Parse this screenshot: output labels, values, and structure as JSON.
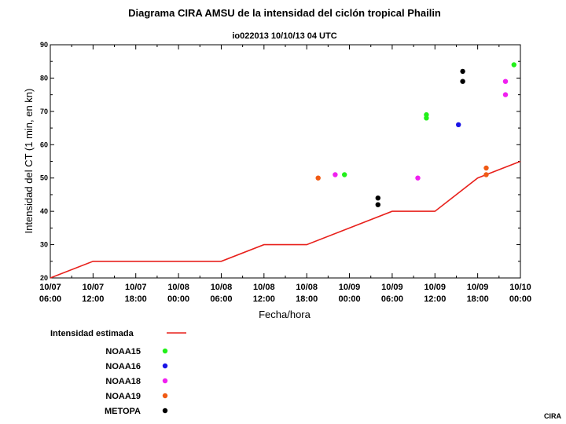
{
  "chart_data": {
    "type": "scatter",
    "title": "Diagrama CIRA AMSU  de la intensidad del ciclón tropical Phailin",
    "subtitle": "io022013  10/10/13  04 UTC",
    "xlabel": "Fecha/hora",
    "ylabel": "Intensidad del CT (1 min, en kn)",
    "xlim": [
      0,
      66
    ],
    "ylim": [
      20,
      90
    ],
    "yticks": [
      20,
      30,
      40,
      50,
      60,
      70,
      80,
      90
    ],
    "xticks": [
      {
        "h": 0,
        "date": "10/07",
        "time": "06:00"
      },
      {
        "h": 6,
        "date": "10/07",
        "time": "12:00"
      },
      {
        "h": 12,
        "date": "10/07",
        "time": "18:00"
      },
      {
        "h": 18,
        "date": "10/08",
        "time": "00:00"
      },
      {
        "h": 24,
        "date": "10/08",
        "time": "06:00"
      },
      {
        "h": 30,
        "date": "10/08",
        "time": "12:00"
      },
      {
        "h": 36,
        "date": "10/08",
        "time": "18:00"
      },
      {
        "h": 42,
        "date": "10/09",
        "time": "00:00"
      },
      {
        "h": 48,
        "date": "10/09",
        "time": "06:00"
      },
      {
        "h": 54,
        "date": "10/09",
        "time": "12:00"
      },
      {
        "h": 60,
        "date": "10/09",
        "time": "18:00"
      },
      {
        "h": 66,
        "date": "10/10",
        "time": "00:00"
      }
    ],
    "estimated_intensity": {
      "name": "Intensidad estimada",
      "color": "#e8211c",
      "x": [
        0,
        6,
        24,
        30,
        36,
        48,
        54,
        60,
        66
      ],
      "y": [
        20,
        25,
        25,
        30,
        30,
        40,
        40,
        50,
        55
      ]
    },
    "series": [
      {
        "name": "NOAA15",
        "color": "#22f01a",
        "x": [
          41.3,
          52.8,
          52.8,
          65.1
        ],
        "y": [
          51,
          69,
          68,
          84
        ]
      },
      {
        "name": "NOAA16",
        "color": "#1a14e6",
        "x": [
          57.3
        ],
        "y": [
          66
        ]
      },
      {
        "name": "NOAA18",
        "color": "#f020f0",
        "x": [
          40.0,
          51.6,
          63.9,
          63.9
        ],
        "y": [
          51,
          50,
          79,
          75
        ]
      },
      {
        "name": "NOAA19",
        "color": "#f05a14",
        "x": [
          37.6,
          61.2,
          61.2
        ],
        "y": [
          50,
          53,
          51
        ]
      },
      {
        "name": "METOPA",
        "color": "#000000",
        "x": [
          46.0,
          46.0,
          57.9,
          57.9
        ],
        "y": [
          44,
          42,
          82,
          79
        ]
      }
    ],
    "credit": "CIRA"
  }
}
